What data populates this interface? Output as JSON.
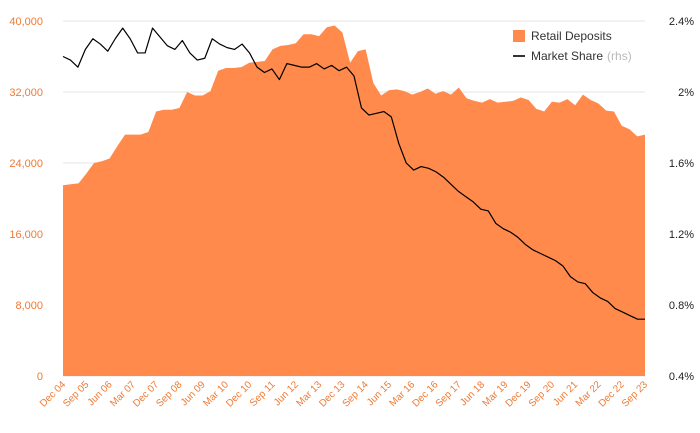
{
  "chart_data": {
    "type": "area",
    "x_tick_labels": [
      "Dec 04",
      "Sep 05",
      "Jun 06",
      "Mar 07",
      "Dec 07",
      "Sep 08",
      "Jun 09",
      "Mar 10",
      "Dec 10",
      "Sep 11",
      "Jun 12",
      "Mar 13",
      "Dec 13",
      "Sep 14",
      "Jun 15",
      "Mar 16",
      "Dec 16",
      "Sep 17",
      "Jun 18",
      "Mar 19",
      "Dec 19",
      "Sep 20",
      "Jun 21",
      "Mar 22",
      "Dec 22",
      "Sep 23"
    ],
    "x_quarter_step": 3,
    "y_left": {
      "min": 0,
      "max": 40000,
      "ticks": [
        0,
        8000,
        16000,
        24000,
        32000,
        40000
      ],
      "tick_labels": [
        "0",
        "8,000",
        "16,000",
        "24,000",
        "32,000",
        "40,000"
      ]
    },
    "y_right": {
      "min": 0.4,
      "max": 2.4,
      "ticks": [
        0.4,
        0.8,
        1.2,
        1.6,
        2.0,
        2.4
      ],
      "tick_labels": [
        "0.4%",
        "0.8%",
        "1.2%",
        "1.6%",
        "2%",
        "2.4%"
      ]
    },
    "grid": true,
    "legend_position": "top-right",
    "colors": {
      "area": "#ff8a4c",
      "line": "#000000",
      "left_axis": "#ef7a34",
      "right_axis": "#222222"
    },
    "series": [
      {
        "name": "Retail Deposits",
        "axis": "left",
        "type": "area",
        "values": [
          21500,
          21600,
          21700,
          22800,
          24000,
          24200,
          24500,
          25900,
          27200,
          27200,
          27200,
          27500,
          29800,
          30000,
          30000,
          30200,
          32000,
          31600,
          31600,
          32100,
          34400,
          34700,
          34700,
          34800,
          35300,
          35400,
          35500,
          36800,
          37200,
          37300,
          37500,
          38500,
          38500,
          38300,
          39300,
          39500,
          38700,
          35300,
          36600,
          36800,
          33000,
          31600,
          32200,
          32300,
          32100,
          31700,
          32000,
          32400,
          31800,
          32100,
          31700,
          32500,
          31300,
          31000,
          30800,
          31200,
          30800,
          30900,
          31000,
          31400,
          31100,
          30100,
          29800,
          30900,
          30800,
          31200,
          30500,
          31700,
          31100,
          30700,
          29900,
          29800,
          28200,
          27800,
          27000,
          27200
        ]
      },
      {
        "name": "Market Share",
        "suffix": "(rhs)",
        "axis": "right",
        "type": "line",
        "values": [
          2.2,
          2.18,
          2.14,
          2.24,
          2.3,
          2.27,
          2.23,
          2.3,
          2.36,
          2.3,
          2.22,
          2.22,
          2.36,
          2.31,
          2.26,
          2.24,
          2.29,
          2.22,
          2.18,
          2.19,
          2.3,
          2.27,
          2.25,
          2.24,
          2.27,
          2.22,
          2.14,
          2.11,
          2.13,
          2.07,
          2.16,
          2.15,
          2.14,
          2.14,
          2.16,
          2.13,
          2.15,
          2.12,
          2.14,
          2.09,
          1.91,
          1.87,
          1.88,
          1.89,
          1.86,
          1.71,
          1.6,
          1.56,
          1.58,
          1.57,
          1.55,
          1.52,
          1.48,
          1.44,
          1.41,
          1.38,
          1.34,
          1.33,
          1.26,
          1.23,
          1.21,
          1.18,
          1.14,
          1.11,
          1.09,
          1.07,
          1.05,
          1.02,
          0.96,
          0.93,
          0.92,
          0.87,
          0.84,
          0.82,
          0.78,
          0.76,
          0.74,
          0.72,
          0.72
        ]
      }
    ]
  }
}
